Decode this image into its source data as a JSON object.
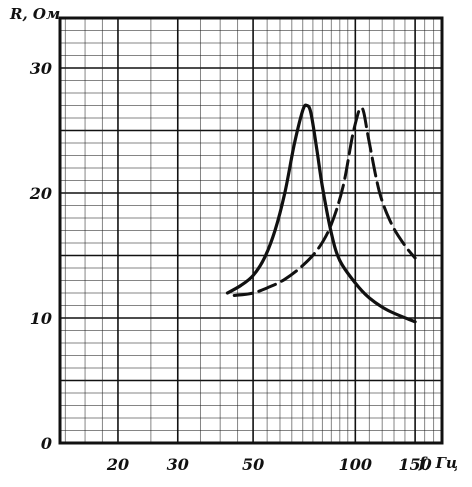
{
  "chart_data": {
    "type": "line",
    "xscale": "log",
    "xlabel": "f, Гц",
    "ylabel": "R, Ом",
    "xlim": [
      13.5,
      180
    ],
    "ylim": [
      0,
      34
    ],
    "grid": true,
    "x_ticks": [
      {
        "value": 20,
        "label": "20"
      },
      {
        "value": 30,
        "label": "30"
      },
      {
        "value": 50,
        "label": "50"
      },
      {
        "value": 100,
        "label": "100"
      },
      {
        "value": 150,
        "label": "150"
      }
    ],
    "y_ticks": [
      {
        "value": 0,
        "label": "0"
      },
      {
        "value": 10,
        "label": "10"
      },
      {
        "value": 20,
        "label": "20"
      },
      {
        "value": 30,
        "label": "30"
      }
    ],
    "series": [
      {
        "style": "solid",
        "x": [
          42,
          46,
          50,
          54,
          58,
          62,
          66,
          70,
          72,
          74,
          77,
          80,
          85,
          90,
          100,
          110,
          125,
          150
        ],
        "y": [
          12.0,
          12.6,
          13.4,
          14.8,
          17.0,
          20.0,
          23.8,
          26.6,
          27.0,
          26.4,
          23.5,
          20.5,
          16.8,
          14.6,
          12.8,
          11.6,
          10.6,
          9.7
        ]
      },
      {
        "style": "dashed",
        "x": [
          44,
          50,
          56,
          62,
          70,
          78,
          85,
          92,
          98,
          102,
          104,
          106,
          110,
          118,
          128,
          140,
          150
        ],
        "y": [
          11.8,
          12.0,
          12.5,
          13.1,
          14.2,
          15.6,
          17.5,
          20.5,
          24.5,
          26.4,
          26.8,
          26.4,
          24.0,
          20.0,
          17.5,
          15.8,
          14.8
        ]
      }
    ]
  }
}
